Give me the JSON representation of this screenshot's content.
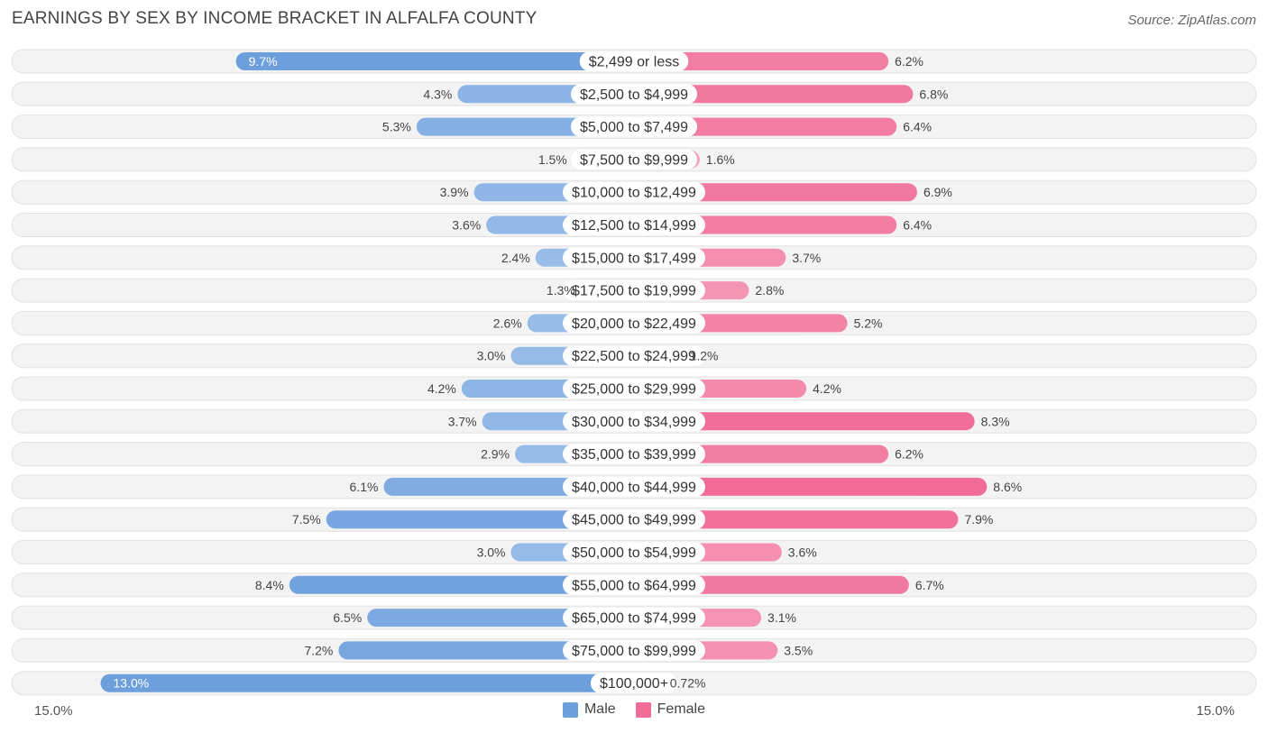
{
  "title": "EARNINGS BY SEX BY INCOME BRACKET IN ALFALFA COUNTY",
  "source": "Source: ZipAtlas.com",
  "axis": {
    "left_label": "15.0%",
    "right_label": "15.0%"
  },
  "legend": {
    "male": {
      "label": "Male",
      "color": "#6c9fdc"
    },
    "female": {
      "label": "Female",
      "color": "#f06c97"
    }
  },
  "chart_data": {
    "type": "bar",
    "orientation": "horizontal-diverging",
    "title": "EARNINGS BY SEX BY INCOME BRACKET IN ALFALFA COUNTY",
    "xlim": [
      -15,
      15
    ],
    "categories": [
      "$2,499 or less",
      "$2,500 to $4,999",
      "$5,000 to $7,499",
      "$7,500 to $9,999",
      "$10,000 to $12,499",
      "$12,500 to $14,999",
      "$15,000 to $17,499",
      "$17,500 to $19,999",
      "$20,000 to $22,499",
      "$22,500 to $24,999",
      "$25,000 to $29,999",
      "$30,000 to $34,999",
      "$35,000 to $39,999",
      "$40,000 to $44,999",
      "$45,000 to $49,999",
      "$50,000 to $54,999",
      "$55,000 to $64,999",
      "$65,000 to $74,999",
      "$75,000 to $99,999",
      "$100,000+"
    ],
    "series": [
      {
        "name": "Male",
        "values": [
          9.7,
          4.3,
          5.3,
          1.5,
          3.9,
          3.6,
          2.4,
          1.3,
          2.6,
          3.0,
          4.2,
          3.7,
          2.9,
          6.1,
          7.5,
          3.0,
          8.4,
          6.5,
          7.2,
          13.0
        ],
        "labels": [
          "9.7%",
          "4.3%",
          "5.3%",
          "1.5%",
          "3.9%",
          "3.6%",
          "2.4%",
          "1.3%",
          "2.6%",
          "3.0%",
          "4.2%",
          "3.7%",
          "2.9%",
          "6.1%",
          "7.5%",
          "3.0%",
          "8.4%",
          "6.5%",
          "7.2%",
          "13.0%"
        ]
      },
      {
        "name": "Female",
        "values": [
          6.2,
          6.8,
          6.4,
          1.6,
          6.9,
          6.4,
          3.7,
          2.8,
          5.2,
          1.2,
          4.2,
          8.3,
          6.2,
          8.6,
          7.9,
          3.6,
          6.7,
          3.1,
          3.5,
          0.72
        ],
        "labels": [
          "6.2%",
          "6.8%",
          "6.4%",
          "1.6%",
          "6.9%",
          "6.4%",
          "3.7%",
          "2.8%",
          "5.2%",
          "1.2%",
          "4.2%",
          "8.3%",
          "6.2%",
          "8.6%",
          "7.9%",
          "3.6%",
          "6.7%",
          "3.1%",
          "3.5%",
          "0.72%"
        ]
      }
    ]
  }
}
